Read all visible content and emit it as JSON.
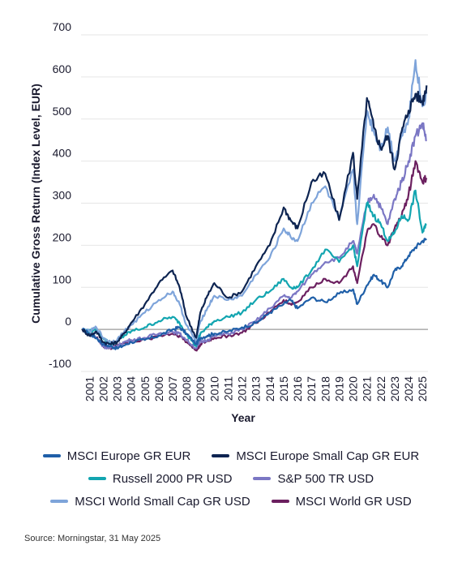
{
  "chart_data": {
    "type": "line",
    "title": "",
    "xlabel": "Year",
    "ylabel": "Cumulative Gross Return (Index Level, EUR)",
    "ylim": [
      -100,
      700
    ],
    "xlim": [
      2000.4,
      2025.4
    ],
    "yticks": [
      -100,
      0,
      100,
      200,
      300,
      400,
      500,
      600,
      700
    ],
    "xticks": [
      "2001",
      "2002",
      "2003",
      "2004",
      "2005",
      "2006",
      "2007",
      "2008",
      "2009",
      "2010",
      "2011",
      "2012",
      "2013",
      "2014",
      "2015",
      "2016",
      "2017",
      "2018",
      "2019",
      "2020",
      "2021",
      "2022",
      "2023",
      "2024",
      "2025"
    ],
    "grid": "horizontal",
    "legend_position": "bottom",
    "series": [
      {
        "name": "MSCI Europe GR EUR",
        "color": "#1f5fa8",
        "x": [
          2000.5,
          2001,
          2001.5,
          2002,
          2002.5,
          2003,
          2003.5,
          2004,
          2005,
          2006,
          2007,
          2007.5,
          2008,
          2008.7,
          2009,
          2009.5,
          2010,
          2011,
          2012,
          2013,
          2014,
          2015,
          2015.5,
          2016,
          2017,
          2018,
          2019,
          2020,
          2020.3,
          2021,
          2021.5,
          2022,
          2022.5,
          2023,
          2023.5,
          2024,
          2024.5,
          2025,
          2025.3
        ],
        "y": [
          0,
          -10,
          -20,
          -35,
          -40,
          -45,
          -38,
          -30,
          -25,
          -15,
          0,
          5,
          -10,
          -35,
          -20,
          -15,
          -10,
          -5,
          5,
          15,
          40,
          60,
          70,
          50,
          75,
          65,
          85,
          95,
          60,
          105,
          130,
          115,
          100,
          140,
          150,
          175,
          195,
          210,
          215
        ]
      },
      {
        "name": "MSCI Europe Small Cap GR EUR",
        "color": "#0d2451",
        "x": [
          2000.5,
          2001,
          2001.5,
          2002,
          2002.5,
          2003,
          2003.5,
          2004,
          2005,
          2006,
          2007,
          2007.5,
          2008,
          2008.7,
          2009,
          2009.5,
          2010,
          2011,
          2012,
          2013,
          2014,
          2015,
          2015.5,
          2016,
          2017,
          2018,
          2019,
          2020,
          2020.3,
          2021,
          2021.5,
          2022,
          2022.5,
          2023,
          2023.5,
          2024,
          2024.5,
          2025,
          2025.3
        ],
        "y": [
          0,
          -15,
          -5,
          -30,
          -35,
          -30,
          -10,
          15,
          60,
          110,
          140,
          100,
          30,
          -20,
          40,
          80,
          110,
          75,
          90,
          150,
          200,
          290,
          260,
          240,
          350,
          370,
          260,
          420,
          310,
          550,
          480,
          430,
          460,
          380,
          470,
          520,
          560,
          540,
          580
        ]
      },
      {
        "name": "Russell 2000 PR USD",
        "color": "#12a5b0",
        "x": [
          2000.5,
          2001,
          2001.5,
          2002,
          2002.5,
          2003,
          2003.5,
          2004,
          2005,
          2006,
          2007,
          2007.5,
          2008,
          2008.7,
          2009,
          2009.5,
          2010,
          2011,
          2012,
          2013,
          2014,
          2015,
          2015.5,
          2016,
          2017,
          2018,
          2019,
          2020,
          2020.3,
          2021,
          2021.5,
          2022,
          2022.5,
          2023,
          2023.5,
          2024,
          2024.5,
          2025,
          2025.3
        ],
        "y": [
          0,
          -5,
          0,
          -20,
          -35,
          -30,
          -15,
          -5,
          5,
          20,
          30,
          15,
          -10,
          -40,
          -10,
          5,
          20,
          30,
          40,
          70,
          90,
          120,
          100,
          100,
          140,
          190,
          160,
          200,
          150,
          300,
          270,
          250,
          210,
          230,
          270,
          260,
          330,
          230,
          250
        ]
      },
      {
        "name": "S&P 500 TR USD",
        "color": "#7b77c4",
        "x": [
          2000.5,
          2001,
          2001.5,
          2002,
          2002.5,
          2003,
          2003.5,
          2004,
          2005,
          2006,
          2007,
          2007.5,
          2008,
          2008.7,
          2009,
          2009.5,
          2010,
          2011,
          2012,
          2013,
          2014,
          2015,
          2015.5,
          2016,
          2017,
          2018,
          2019,
          2020,
          2020.3,
          2021,
          2021.5,
          2022,
          2022.5,
          2023,
          2023.5,
          2024,
          2024.5,
          2025,
          2025.3
        ],
        "y": [
          0,
          -10,
          -20,
          -40,
          -45,
          -40,
          -30,
          -25,
          -20,
          -10,
          -5,
          -10,
          -25,
          -45,
          -30,
          -25,
          -15,
          -10,
          0,
          20,
          50,
          80,
          75,
          90,
          130,
          160,
          170,
          210,
          180,
          300,
          320,
          290,
          250,
          310,
          350,
          400,
          460,
          490,
          450
        ]
      },
      {
        "name": "MSCI World Small Cap GR USD",
        "color": "#7ea4da",
        "x": [
          2000.5,
          2001,
          2001.5,
          2002,
          2002.5,
          2003,
          2003.5,
          2004,
          2005,
          2006,
          2007,
          2007.5,
          2008,
          2008.7,
          2009,
          2009.5,
          2010,
          2011,
          2012,
          2013,
          2014,
          2015,
          2015.5,
          2016,
          2017,
          2018,
          2019,
          2020,
          2020.3,
          2021,
          2021.5,
          2022,
          2022.5,
          2023,
          2023.5,
          2024,
          2024.5,
          2025,
          2025.3
        ],
        "y": [
          0,
          -5,
          5,
          -20,
          -30,
          -25,
          -5,
          10,
          40,
          70,
          90,
          60,
          10,
          -30,
          20,
          50,
          80,
          70,
          80,
          130,
          170,
          240,
          220,
          210,
          300,
          340,
          260,
          380,
          250,
          520,
          470,
          430,
          480,
          400,
          460,
          500,
          640,
          530,
          560
        ]
      },
      {
        "name": "MSCI World GR USD",
        "color": "#6b1f5f",
        "x": [
          2000.5,
          2001,
          2001.5,
          2002,
          2002.5,
          2003,
          2003.5,
          2004,
          2005,
          2006,
          2007,
          2007.5,
          2008,
          2008.7,
          2009,
          2009.5,
          2010,
          2011,
          2012,
          2013,
          2014,
          2015,
          2015.5,
          2016,
          2017,
          2018,
          2019,
          2020,
          2020.3,
          2021,
          2021.5,
          2022,
          2022.5,
          2023,
          2023.5,
          2024,
          2024.5,
          2025,
          2025.3
        ],
        "y": [
          0,
          -10,
          -20,
          -40,
          -45,
          -40,
          -32,
          -28,
          -25,
          -15,
          -10,
          -15,
          -30,
          -50,
          -35,
          -28,
          -20,
          -15,
          -8,
          15,
          40,
          70,
          60,
          65,
          100,
          120,
          110,
          150,
          110,
          230,
          250,
          220,
          200,
          240,
          270,
          320,
          400,
          350,
          360
        ]
      }
    ]
  },
  "source_text": "Source: Morningstar, 31 May 2025"
}
